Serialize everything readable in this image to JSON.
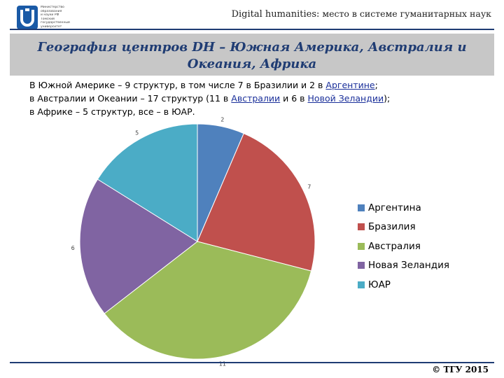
{
  "header": {
    "logo_name": "university-logo",
    "logo_lines": [
      "Министерство",
      "образования",
      "и науки РФ",
      "Томский",
      "государственный",
      "университет"
    ],
    "title_latin": "Digital humanities:",
    "title_ru": " место в системе гуманитарных наук"
  },
  "slide": {
    "title_line1": "География центров DH – Южная Америка, Австралия и",
    "title_line2": "Океания, Африка",
    "desc": {
      "line1_pre": "В Южной Америке – 9 структур, в том числе 7 в Бразилии и 2 в ",
      "line1_link": "Аргентине",
      "line1_post": ";",
      "line2_pre": "в Австралии и Океании – 17 структур (11 в ",
      "line2_link1": "Австралии",
      "line2_mid": " и 6 в ",
      "line2_link2": "Новой Зеландии",
      "line2_post": ");",
      "line3": "в Африке – 5 структур, все – в ЮАР."
    }
  },
  "chart_data": {
    "type": "pie",
    "title": "",
    "categories": [
      "Аргентина",
      "Бразилия",
      "Австралия",
      "Новая Зеландия",
      "ЮАР"
    ],
    "values": [
      2,
      7,
      11,
      6,
      5
    ],
    "data_labels": [
      "2",
      "7",
      "11",
      "6",
      "5"
    ],
    "colors": [
      "#4f81bd",
      "#c0504d",
      "#9bbb59",
      "#8064a2",
      "#4bacc6"
    ],
    "start_angle_deg": 0,
    "direction": "clockwise",
    "legend_position": "right"
  },
  "footer": {
    "copyright": "© ТГУ 2015"
  }
}
